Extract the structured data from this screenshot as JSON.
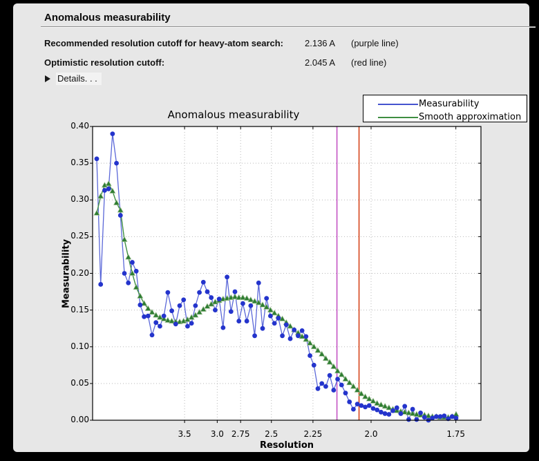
{
  "window": {
    "title": "Anomalous measurability"
  },
  "info": {
    "rows": [
      {
        "label": "Recommended resolution cutoff for heavy-atom search:",
        "value": "2.136 A",
        "note": "(purple line)"
      },
      {
        "label": "Optimistic resolution cutoff:",
        "value": "2.045 A",
        "note": "(red line)"
      }
    ],
    "details_label": "Details. . ."
  },
  "chart_data": {
    "type": "line",
    "title": "Anomalous measurability",
    "xlabel": "Resolution",
    "ylabel": "Measurability",
    "x_axis": {
      "unit": "Angstrom",
      "scale": "linear in 1/d^2",
      "tick_d": [
        3.5,
        3.0,
        2.75,
        2.5,
        2.25,
        2.0,
        1.75
      ],
      "tick_labels": [
        "3.5",
        "3.0",
        "2.75",
        "2.5",
        "2.25",
        "2.0",
        "1.75"
      ]
    },
    "y_axis": {
      "min": 0.0,
      "max": 0.4,
      "tick_step": 0.05,
      "tick_labels": [
        "0.00",
        "0.05",
        "0.10",
        "0.15",
        "0.20",
        "0.25",
        "0.30",
        "0.35",
        "0.40"
      ]
    },
    "grid": true,
    "legend_position": "upper right",
    "legend": [
      {
        "name": "Measurability",
        "color": "#4553cf"
      },
      {
        "name": "Smooth approximation",
        "color": "#3e8e41"
      }
    ],
    "vlines": [
      {
        "d": 2.136,
        "color": "#c353c3",
        "meaning": "purple line"
      },
      {
        "d": 2.045,
        "color": "#d6441a",
        "meaning": "red line"
      }
    ],
    "bins": {
      "count": 92,
      "s2_first": 0.002337,
      "s2_last": 0.326731
    },
    "series": [
      {
        "name": "Measurability",
        "marker": "circle",
        "values": [
          0.356,
          0.185,
          0.313,
          0.315,
          0.39,
          0.35,
          0.279,
          0.2,
          0.187,
          0.215,
          0.203,
          0.157,
          0.141,
          0.142,
          0.116,
          0.133,
          0.128,
          0.142,
          0.174,
          0.149,
          0.131,
          0.156,
          0.164,
          0.128,
          0.132,
          0.156,
          0.174,
          0.188,
          0.175,
          0.167,
          0.15,
          0.165,
          0.126,
          0.195,
          0.148,
          0.175,
          0.135,
          0.159,
          0.135,
          0.156,
          0.115,
          0.187,
          0.125,
          0.166,
          0.142,
          0.132,
          0.139,
          0.115,
          0.13,
          0.111,
          0.123,
          0.115,
          0.122,
          0.114,
          0.088,
          0.075,
          0.043,
          0.05,
          0.046,
          0.061,
          0.041,
          0.056,
          0.048,
          0.037,
          0.025,
          0.015,
          0.022,
          0.02,
          0.018,
          0.02,
          0.016,
          0.014,
          0.011,
          0.009,
          0.008,
          0.013,
          0.017,
          0.009,
          0.019,
          0.001,
          0.015,
          0.001,
          0.01,
          0.004,
          0.0,
          0.003,
          0.005,
          0.005,
          0.006,
          0.002,
          0.005,
          0.003
        ]
      },
      {
        "name": "Smooth approximation",
        "marker": "triangle",
        "values": [
          0.282,
          0.305,
          0.32,
          0.322,
          0.312,
          0.296,
          0.286,
          0.246,
          0.222,
          0.2,
          0.181,
          0.169,
          0.159,
          0.152,
          0.147,
          0.143,
          0.14,
          0.138,
          0.136,
          0.135,
          0.134,
          0.134,
          0.135,
          0.137,
          0.14,
          0.143,
          0.147,
          0.151,
          0.155,
          0.158,
          0.161,
          0.163,
          0.165,
          0.166,
          0.167,
          0.168,
          0.167,
          0.167,
          0.166,
          0.164,
          0.162,
          0.16,
          0.157,
          0.154,
          0.15,
          0.146,
          0.142,
          0.138,
          0.133,
          0.128,
          0.123,
          0.119,
          0.114,
          0.11,
          0.105,
          0.1,
          0.095,
          0.09,
          0.084,
          0.079,
          0.073,
          0.067,
          0.062,
          0.056,
          0.051,
          0.046,
          0.041,
          0.036,
          0.032,
          0.029,
          0.026,
          0.023,
          0.021,
          0.019,
          0.017,
          0.015,
          0.013,
          0.012,
          0.011,
          0.01,
          0.009,
          0.008,
          0.007,
          0.007,
          0.006,
          0.005,
          0.005,
          0.004,
          0.004,
          0.004,
          0.005,
          0.008
        ]
      }
    ],
    "colors": {
      "blue_line": "#5a67d8",
      "blue_marker": "#2434cc",
      "green_line": "#3e8e41",
      "green_marker": "#2e7d32",
      "grid": "#b8b8b8",
      "plot_bg": "#ffffff",
      "frame": "#000000"
    }
  }
}
